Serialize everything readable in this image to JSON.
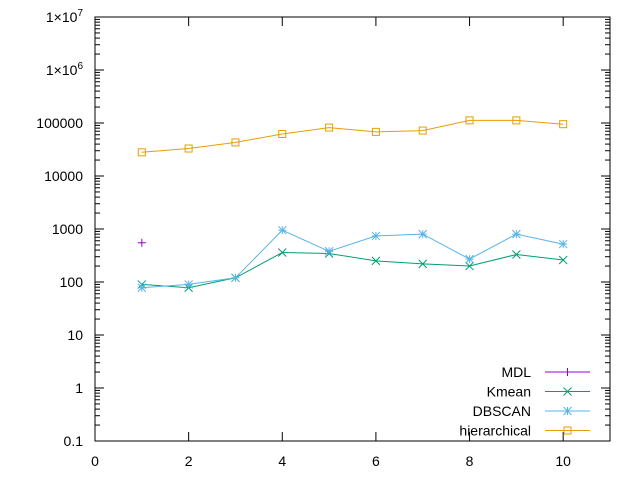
{
  "chart_data": {
    "type": "line",
    "title": "",
    "xlabel": "",
    "ylabel": "",
    "x_scale": "linear",
    "y_scale": "log",
    "xlim": [
      0,
      11
    ],
    "ylim": [
      0.1,
      10000000
    ],
    "grid": false,
    "legend_position": "bottom-right",
    "x_ticks": [
      0,
      2,
      4,
      6,
      8,
      10
    ],
    "x_tick_labels": [
      "0",
      "2",
      "4",
      "6",
      "8",
      "10"
    ],
    "y_ticks": [
      {
        "value": 0.1,
        "label": "0.1"
      },
      {
        "value": 1,
        "label": "1"
      },
      {
        "value": 10,
        "label": "10"
      },
      {
        "value": 100,
        "label": "100"
      },
      {
        "value": 1000,
        "label": "1000"
      },
      {
        "value": 10000,
        "label": "10000"
      },
      {
        "value": 100000,
        "label": "100000"
      },
      {
        "value": 1000000,
        "label": "1×10",
        "exp": "6"
      },
      {
        "value": 10000000,
        "label": "1×10",
        "exp": "7"
      }
    ],
    "series": [
      {
        "name": "MDL",
        "color": "#9400d3",
        "marker": "plus",
        "x": [
          1
        ],
        "y": [
          550
        ]
      },
      {
        "name": "Kmean",
        "color": "#009e73",
        "marker": "cross",
        "x": [
          1,
          2,
          3,
          4,
          5,
          6,
          7,
          8,
          9,
          10
        ],
        "y": [
          90,
          78,
          120,
          360,
          345,
          250,
          220,
          200,
          330,
          260
        ]
      },
      {
        "name": "DBSCAN",
        "color": "#56b4e9",
        "marker": "star",
        "x": [
          1,
          2,
          3,
          4,
          5,
          6,
          7,
          8,
          9,
          10
        ],
        "y": [
          78,
          90,
          120,
          950,
          380,
          740,
          800,
          270,
          800,
          520
        ]
      },
      {
        "name": "hierarchical",
        "color": "#e69f00",
        "marker": "square",
        "x": [
          1,
          2,
          3,
          4,
          5,
          6,
          7,
          8,
          9,
          10
        ],
        "y": [
          28000,
          33000,
          43000,
          62000,
          82000,
          68000,
          72000,
          112000,
          112000,
          95000
        ]
      }
    ]
  }
}
